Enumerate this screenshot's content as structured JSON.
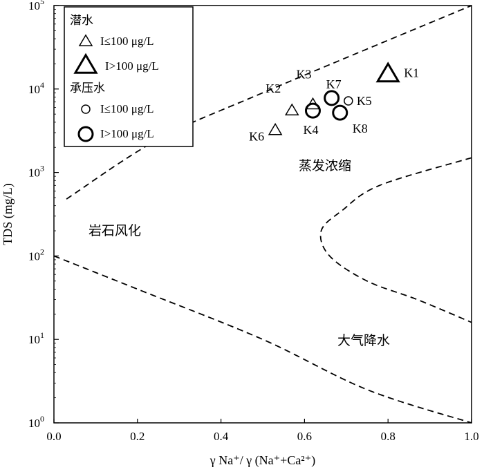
{
  "chart_data": {
    "type": "scatter",
    "xlabel": "γ Na⁺/ γ (Na⁺+Ca²⁺)",
    "ylabel": "TDS (mg/L)",
    "xlim": [
      0,
      1.0
    ],
    "ylim": [
      1,
      100000
    ],
    "y_scale": "log",
    "x_ticks": [
      "0.0",
      "0.2",
      "0.4",
      "0.6",
      "0.8",
      "1.0"
    ],
    "x_tick_values": [
      0,
      0.2,
      0.4,
      0.6,
      0.8,
      1.0
    ],
    "y_tick_exponents": [
      "0",
      "1",
      "2",
      "3",
      "4",
      "5"
    ],
    "y_tick_base": "10",
    "grid": false,
    "legend_placement": "top-left",
    "legend": {
      "group1_title": "潜水",
      "group1_items": [
        {
          "marker": "triangle-small",
          "label": "I≤100 μg/L"
        },
        {
          "marker": "triangle-large",
          "label": "I>100 μg/L"
        }
      ],
      "group2_title": "承压水",
      "group2_items": [
        {
          "marker": "circle-small",
          "label": "I≤100 μg/L"
        },
        {
          "marker": "circle-large",
          "label": "I>100 μg/L"
        }
      ]
    },
    "regions": [
      {
        "label": "岩石风化"
      },
      {
        "label": "蒸发浓缩"
      },
      {
        "label": "大气降水"
      }
    ],
    "points": [
      {
        "name": "K1",
        "x": 0.8,
        "y": 15000,
        "marker": "triangle-large"
      },
      {
        "name": "K2",
        "x": 0.57,
        "y": 5500,
        "marker": "triangle-small"
      },
      {
        "name": "K3",
        "x": 0.62,
        "y": 6500,
        "marker": "triangle-small"
      },
      {
        "name": "K4",
        "x": 0.62,
        "y": 5500,
        "marker": "circle-large"
      },
      {
        "name": "K5",
        "x": 0.705,
        "y": 7200,
        "marker": "circle-small"
      },
      {
        "name": "K6",
        "x": 0.53,
        "y": 3200,
        "marker": "triangle-small"
      },
      {
        "name": "K7",
        "x": 0.665,
        "y": 7800,
        "marker": "circle-large"
      },
      {
        "name": "K8",
        "x": 0.685,
        "y": 5200,
        "marker": "circle-large"
      }
    ],
    "boundary_curves": {
      "upper": [
        [
          0.03,
          480
        ],
        [
          0.25,
          2500
        ],
        [
          0.5,
          9000
        ],
        [
          1.0,
          100000
        ]
      ],
      "lower": [
        [
          0.0,
          100
        ],
        [
          0.2,
          40
        ],
        [
          0.5,
          10
        ],
        [
          0.75,
          2.5
        ],
        [
          1.0,
          1
        ]
      ],
      "right": [
        [
          1.0,
          1500
        ],
        [
          0.78,
          700
        ],
        [
          0.69,
          350
        ],
        [
          0.64,
          200
        ],
        [
          0.66,
          100
        ],
        [
          0.75,
          50
        ],
        [
          0.87,
          30
        ],
        [
          1.0,
          16
        ]
      ]
    }
  }
}
